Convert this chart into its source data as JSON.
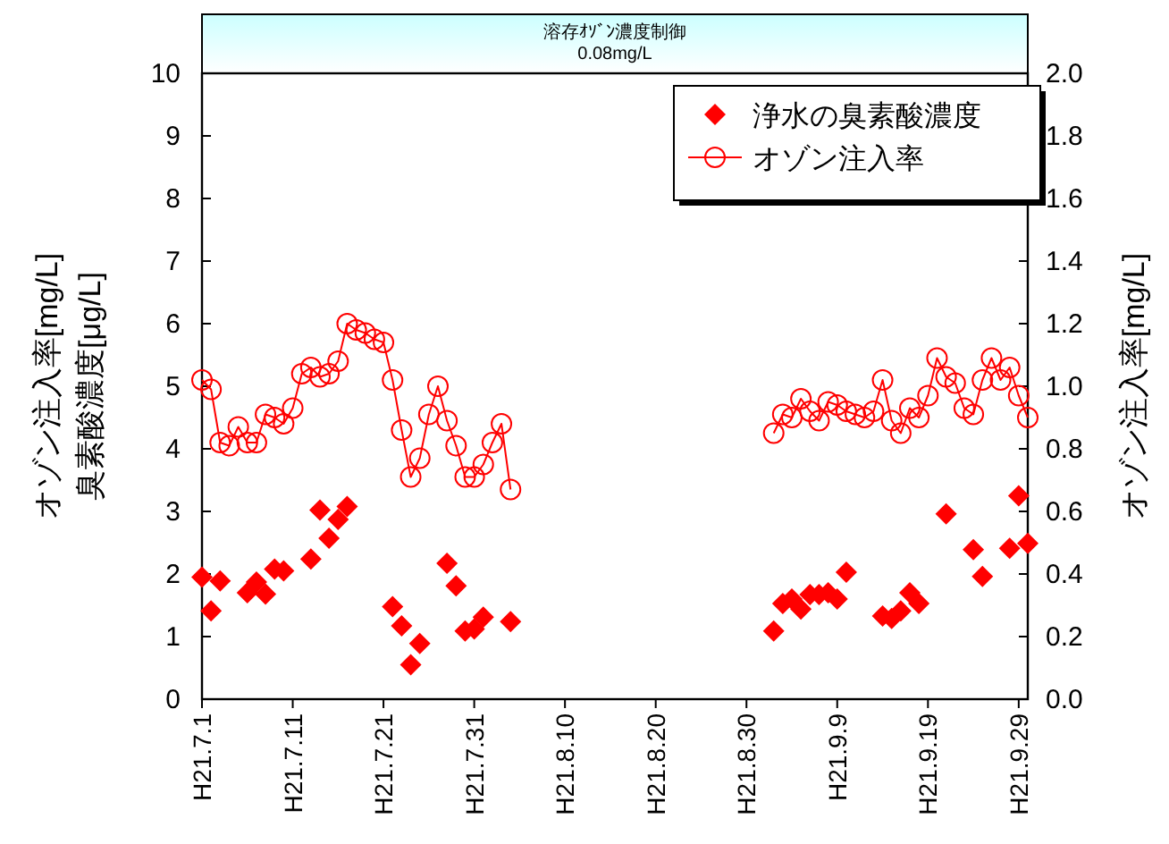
{
  "chart_data": {
    "type": "line",
    "ylabel": "オゾン注入率[mg/L]\n臭素酸濃度[μg/L]",
    "y2label": "オゾン注入率[mg/L]",
    "xlim": [
      "--07-01",
      "--09-30"
    ],
    "xticks": [
      {
        "value": "--07-01",
        "label": "H21.7.1"
      },
      {
        "value": "--07-11",
        "label": "H21.7.11"
      },
      {
        "value": "--07-21",
        "label": "H21.7.21"
      },
      {
        "value": "--07-31",
        "label": "H21.7.31"
      },
      {
        "value": "--08-10",
        "label": "H21.8.10"
      },
      {
        "value": "--08-20",
        "label": "H21.8.20"
      },
      {
        "value": "--08-30",
        "label": "H21.8.30"
      },
      {
        "value": "--09-09",
        "label": "H21.9.9"
      },
      {
        "value": "--09-19",
        "label": "H21.9.19"
      },
      {
        "value": "--09-29",
        "label": "H21.9.29"
      }
    ],
    "ylim": [
      0,
      10
    ],
    "yticks": [
      0,
      1,
      2,
      3,
      4,
      5,
      6,
      7,
      8,
      9,
      10
    ],
    "y2lim": [
      0,
      2
    ],
    "y2ticks": [
      {
        "value": 0,
        "label": "0.0"
      },
      0.2,
      0.4,
      0.6,
      0.8,
      {
        "value": 1,
        "label": "1.0"
      },
      1.2,
      1.4,
      1.6,
      1.8,
      {
        "value": 2,
        "label": "2.0"
      }
    ],
    "annotations": [
      "溶存ｵｿﾞﾝ濃度制御\n0.08mg/L"
    ],
    "legend": "top right",
    "series": [
      {
        "name": "浄水の臭素酸濃度",
        "type": "scatter",
        "marker": "diamond",
        "color": "#ff0000",
        "x": [
          "--07-01",
          "--07-02",
          "--07-03",
          "--07-06",
          "--07-07",
          "--07-08",
          "--07-09",
          "--07-10",
          "--07-13",
          "--07-14",
          "--07-15",
          "--07-16",
          "--07-17",
          "--07-22",
          "--07-23",
          "--07-24",
          "--07-25",
          "--07-28",
          "--07-29",
          "--07-30",
          "--07-31",
          "--08-01",
          "--08-04",
          "--09-02",
          "--09-03",
          "--09-04",
          "--09-05",
          "--09-06",
          "--09-07",
          "--09-08",
          "--09-09",
          "--09-10",
          "--09-14",
          "--09-15",
          "--09-16",
          "--09-17",
          "--09-18",
          "--09-21",
          "--09-24",
          "--09-25",
          "--09-28",
          "--09-29",
          "--09-30"
        ],
        "values": [
          1.95,
          1.41,
          1.89,
          1.7,
          1.87,
          1.68,
          2.08,
          2.05,
          2.24,
          3.02,
          2.57,
          2.87,
          3.08,
          1.48,
          1.17,
          0.55,
          0.89,
          2.17,
          1.81,
          1.09,
          1.12,
          1.31,
          1.24,
          1.09,
          1.53,
          1.6,
          1.44,
          1.67,
          1.67,
          1.7,
          1.6,
          2.03,
          1.33,
          1.29,
          1.41,
          1.7,
          1.53,
          2.96,
          2.39,
          1.96,
          2.41,
          3.25,
          2.49
        ]
      },
      {
        "name": "オゾン注入率",
        "type": "line",
        "marker": "circle",
        "color": "#ff0000",
        "axis": "y2",
        "x": [
          "--07-01",
          "--07-02",
          "--07-03",
          "--07-04",
          "--07-05",
          "--07-06",
          "--07-07",
          "--07-08",
          "--07-09",
          "--07-10",
          "--07-11",
          "--07-12",
          "--07-13",
          "--07-14",
          "--07-15",
          "--07-16",
          "--07-17",
          "--07-18",
          "--07-19",
          "--07-20",
          "--07-21",
          "--07-22",
          "--07-23",
          "--07-24",
          "--07-25",
          "--07-26",
          "--07-27",
          "--07-28",
          "--07-29",
          "--07-30",
          "--07-31",
          "--08-01",
          "--08-02",
          "--08-03",
          "--08-04",
          "--08-05",
          "--09-02",
          "--09-03",
          "--09-04",
          "--09-05",
          "--09-06",
          "--09-07",
          "--09-08",
          "--09-09",
          "--09-10",
          "--09-11",
          "--09-12",
          "--09-13",
          "--09-14",
          "--09-15",
          "--09-16",
          "--09-17",
          "--09-18",
          "--09-19",
          "--09-20",
          "--09-21",
          "--09-22",
          "--09-23",
          "--09-24",
          "--09-25",
          "--09-26",
          "--09-27",
          "--09-28",
          "--09-29",
          "--09-30"
        ],
        "values": [
          1.02,
          0.99,
          0.82,
          0.81,
          0.87,
          0.82,
          0.82,
          0.91,
          0.9,
          0.88,
          0.93,
          1.04,
          1.06,
          1.03,
          1.04,
          1.08,
          1.2,
          1.18,
          1.17,
          1.15,
          1.14,
          1.02,
          0.86,
          0.71,
          0.77,
          0.91,
          1.0,
          0.89,
          0.81,
          0.71,
          0.71,
          0.75,
          0.82,
          0.88,
          0.67,
          null,
          0.85,
          0.91,
          0.9,
          0.96,
          0.92,
          0.89,
          0.95,
          0.94,
          0.92,
          0.91,
          0.9,
          0.92,
          1.02,
          0.89,
          0.85,
          0.93,
          0.9,
          0.97,
          1.09,
          1.03,
          1.01,
          0.93,
          0.91,
          1.02,
          1.09,
          1.02,
          1.06,
          0.97,
          0.9
        ]
      }
    ]
  }
}
